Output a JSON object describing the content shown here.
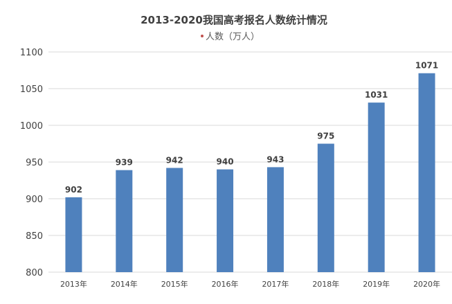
{
  "chart_data": {
    "type": "bar",
    "title": "2013-2020我国高考报名人数统计情况",
    "legend": {
      "entries": [
        "人数（万人）"
      ],
      "placement": "top",
      "marker_color": "#c0504d"
    },
    "categories": [
      "2013年",
      "2014年",
      "2015年",
      "2016年",
      "2017年",
      "2018年",
      "2019年",
      "2020年"
    ],
    "series": [
      {
        "name": "人数（万人）",
        "values": [
          902,
          939,
          942,
          940,
          943,
          975,
          1031,
          1071
        ]
      }
    ],
    "ylim": [
      800,
      1100
    ],
    "yticks": [
      800,
      850,
      900,
      950,
      1000,
      1050,
      1100
    ],
    "grid": true,
    "bar_color": "#4f81bd",
    "data_labels": true
  }
}
